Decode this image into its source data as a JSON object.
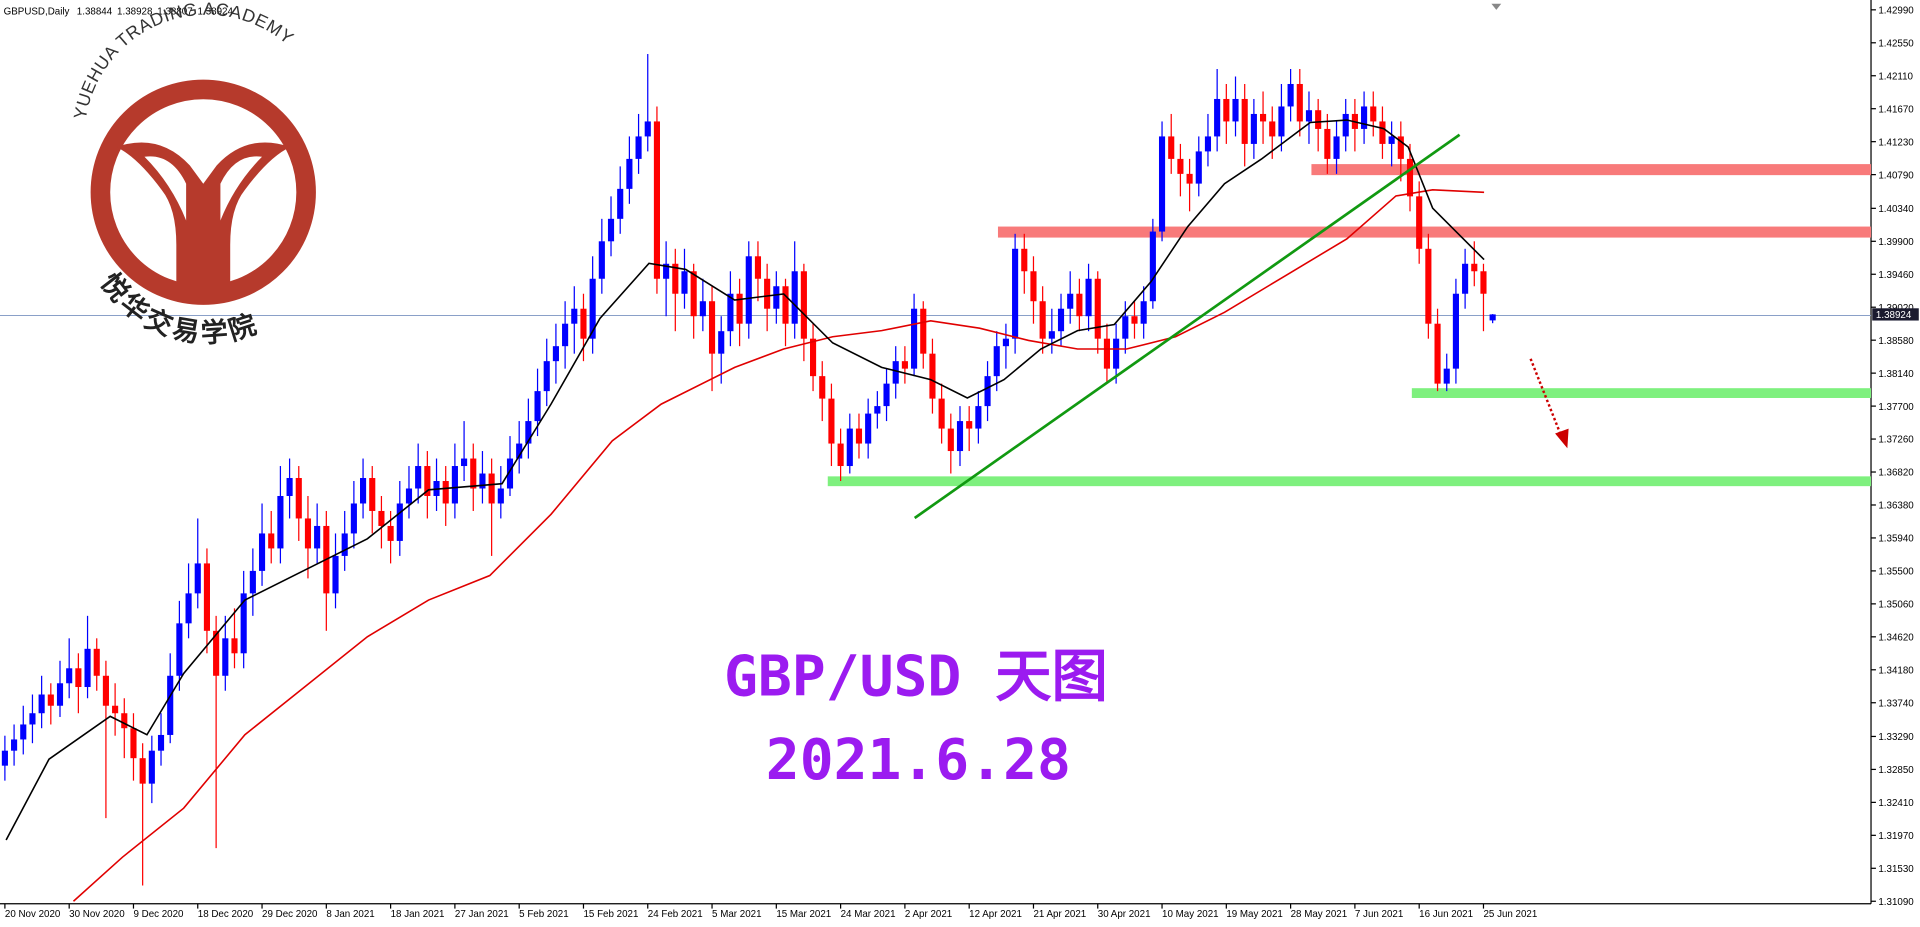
{
  "chart_data": {
    "type": "candlestick",
    "symbol": "GBPUSD,Daily",
    "title": "GBP/USD 天图",
    "subtitle": "2021.6.28",
    "watermark_en": "YUEHUA TRADING ACADEMY",
    "watermark_cn": "悦华交易学院",
    "up_color": "#0000ff",
    "down_color": "#ff0000",
    "ylim": [
      1.3109,
      1.4299
    ],
    "yticks": [
      {
        "value": 1.4299,
        "label": "1.42990"
      },
      {
        "value": 1.4255,
        "label": "1.42550"
      },
      {
        "value": 1.4211,
        "label": "1.42110"
      },
      {
        "value": 1.4167,
        "label": "1.41670"
      },
      {
        "value": 1.4123,
        "label": "1.41230"
      },
      {
        "value": 1.4079,
        "label": "1.40790"
      },
      {
        "value": 1.4034,
        "label": "1.40340"
      },
      {
        "value": 1.399,
        "label": "1.39900"
      },
      {
        "value": 1.3946,
        "label": "1.39460"
      },
      {
        "value": 1.3902,
        "label": "1.39020"
      },
      {
        "value": 1.3858,
        "label": "1.38580"
      },
      {
        "value": 1.3814,
        "label": "1.38140"
      },
      {
        "value": 1.377,
        "label": "1.37700"
      },
      {
        "value": 1.3726,
        "label": "1.37260"
      },
      {
        "value": 1.3682,
        "label": "1.36820"
      },
      {
        "value": 1.3638,
        "label": "1.36380"
      },
      {
        "value": 1.3594,
        "label": "1.35940"
      },
      {
        "value": 1.355,
        "label": "1.35500"
      },
      {
        "value": 1.3506,
        "label": "1.35060"
      },
      {
        "value": 1.3462,
        "label": "1.34620"
      },
      {
        "value": 1.3418,
        "label": "1.34180"
      },
      {
        "value": 1.3374,
        "label": "1.33740"
      },
      {
        "value": 1.3329,
        "label": "1.33290"
      },
      {
        "value": 1.3285,
        "label": "1.32850"
      },
      {
        "value": 1.3241,
        "label": "1.32410"
      },
      {
        "value": 1.3197,
        "label": "1.31970"
      },
      {
        "value": 1.3153,
        "label": "1.31530"
      },
      {
        "value": 1.3109,
        "label": "1.31090"
      }
    ],
    "categories": [
      "20 Nov 2020",
      null,
      null,
      null,
      null,
      null,
      null,
      "30 Nov 2020",
      null,
      null,
      null,
      null,
      null,
      null,
      "9 Dec 2020",
      null,
      null,
      null,
      null,
      null,
      null,
      "18 Dec 2020",
      null,
      null,
      null,
      null,
      null,
      null,
      "29 Dec 2020",
      null,
      null,
      null,
      null,
      null,
      null,
      "8 Jan 2021",
      null,
      null,
      null,
      null,
      null,
      null,
      "18 Jan 2021",
      null,
      null,
      null,
      null,
      null,
      null,
      "27 Jan 2021",
      null,
      null,
      null,
      null,
      null,
      null,
      "5 Feb 2021",
      null,
      null,
      null,
      null,
      null,
      null,
      "15 Feb 2021",
      null,
      null,
      null,
      null,
      null,
      null,
      "24 Feb 2021",
      null,
      null,
      null,
      null,
      null,
      null,
      "5 Mar 2021",
      null,
      null,
      null,
      null,
      null,
      null,
      "15 Mar 2021",
      null,
      null,
      null,
      null,
      null,
      null,
      "24 Mar 2021",
      null,
      null,
      null,
      null,
      null,
      null,
      "2 Apr 2021",
      null,
      null,
      null,
      null,
      null,
      null,
      "12 Apr 2021",
      null,
      null,
      null,
      null,
      null,
      null,
      "21 Apr 2021",
      null,
      null,
      null,
      null,
      null,
      null,
      "30 Apr 2021",
      null,
      null,
      null,
      null,
      null,
      null,
      "10 May 2021",
      null,
      null,
      null,
      null,
      null,
      null,
      "19 May 2021",
      null,
      null,
      null,
      null,
      null,
      null,
      "28 May 2021",
      null,
      null,
      null,
      null,
      null,
      null,
      "7 Jun 2021",
      null,
      null,
      null,
      null,
      null,
      null,
      "16 Jun 2021",
      null,
      null,
      null,
      null,
      null,
      null,
      "25 Jun 2021",
      null
    ],
    "candles": [
      [
        1.329,
        1.333,
        1.327,
        1.331
      ],
      [
        1.331,
        1.3345,
        1.329,
        1.3325
      ],
      [
        1.3325,
        1.337,
        1.3305,
        1.3345
      ],
      [
        1.3345,
        1.3385,
        1.332,
        1.336
      ],
      [
        1.336,
        1.341,
        1.334,
        1.3385
      ],
      [
        1.3385,
        1.34,
        1.3345,
        1.337
      ],
      [
        1.337,
        1.343,
        1.3355,
        1.34
      ],
      [
        1.34,
        1.346,
        1.338,
        1.342
      ],
      [
        1.342,
        1.344,
        1.336,
        1.3395
      ],
      [
        1.3395,
        1.349,
        1.338,
        1.3446
      ],
      [
        1.3446,
        1.346,
        1.339,
        1.341
      ],
      [
        1.341,
        1.343,
        1.322,
        1.337
      ],
      [
        1.337,
        1.34,
        1.333,
        1.336
      ],
      [
        1.336,
        1.338,
        1.33,
        1.334
      ],
      [
        1.334,
        1.336,
        1.327,
        1.33
      ],
      [
        1.33,
        1.332,
        1.313,
        1.3266
      ],
      [
        1.3266,
        1.333,
        1.324,
        1.331
      ],
      [
        1.331,
        1.336,
        1.329,
        1.3331
      ],
      [
        1.3331,
        1.344,
        1.332,
        1.341
      ],
      [
        1.341,
        1.351,
        1.339,
        1.348
      ],
      [
        1.348,
        1.356,
        1.346,
        1.352
      ],
      [
        1.352,
        1.362,
        1.35,
        1.356
      ],
      [
        1.356,
        1.358,
        1.344,
        1.347
      ],
      [
        1.347,
        1.349,
        1.318,
        1.341
      ],
      [
        1.341,
        1.349,
        1.339,
        1.346
      ],
      [
        1.346,
        1.35,
        1.342,
        1.344
      ],
      [
        1.344,
        1.355,
        1.342,
        1.352
      ],
      [
        1.352,
        1.358,
        1.349,
        1.355
      ],
      [
        1.355,
        1.364,
        1.353,
        1.36
      ],
      [
        1.36,
        1.363,
        1.356,
        1.358
      ],
      [
        1.358,
        1.369,
        1.356,
        1.365
      ],
      [
        1.365,
        1.37,
        1.362,
        1.3674
      ],
      [
        1.3674,
        1.369,
        1.359,
        1.362
      ],
      [
        1.362,
        1.365,
        1.354,
        1.358
      ],
      [
        1.358,
        1.364,
        1.356,
        1.361
      ],
      [
        1.361,
        1.363,
        1.347,
        1.352
      ],
      [
        1.352,
        1.36,
        1.35,
        1.357
      ],
      [
        1.357,
        1.363,
        1.355,
        1.36
      ],
      [
        1.36,
        1.367,
        1.358,
        1.364
      ],
      [
        1.364,
        1.37,
        1.362,
        1.3674
      ],
      [
        1.3674,
        1.369,
        1.36,
        1.363
      ],
      [
        1.363,
        1.365,
        1.358,
        1.361
      ],
      [
        1.361,
        1.363,
        1.356,
        1.359
      ],
      [
        1.359,
        1.367,
        1.357,
        1.364
      ],
      [
        1.364,
        1.369,
        1.362,
        1.366
      ],
      [
        1.366,
        1.372,
        1.364,
        1.369
      ],
      [
        1.369,
        1.371,
        1.362,
        1.365
      ],
      [
        1.365,
        1.37,
        1.363,
        1.367
      ],
      [
        1.367,
        1.369,
        1.361,
        1.364
      ],
      [
        1.364,
        1.372,
        1.362,
        1.369
      ],
      [
        1.369,
        1.375,
        1.367,
        1.37
      ],
      [
        1.37,
        1.372,
        1.363,
        1.366
      ],
      [
        1.366,
        1.371,
        1.364,
        1.368
      ],
      [
        1.368,
        1.37,
        1.357,
        1.364
      ],
      [
        1.364,
        1.369,
        1.362,
        1.366
      ],
      [
        1.366,
        1.373,
        1.365,
        1.37
      ],
      [
        1.37,
        1.375,
        1.368,
        1.372
      ],
      [
        1.372,
        1.378,
        1.37,
        1.375
      ],
      [
        1.375,
        1.382,
        1.373,
        1.379
      ],
      [
        1.379,
        1.386,
        1.377,
        1.383
      ],
      [
        1.383,
        1.388,
        1.38,
        1.385
      ],
      [
        1.385,
        1.391,
        1.382,
        1.388
      ],
      [
        1.388,
        1.393,
        1.384,
        1.39
      ],
      [
        1.39,
        1.392,
        1.383,
        1.386
      ],
      [
        1.386,
        1.397,
        1.384,
        1.394
      ],
      [
        1.394,
        1.402,
        1.392,
        1.399
      ],
      [
        1.399,
        1.405,
        1.397,
        1.402
      ],
      [
        1.402,
        1.409,
        1.4,
        1.406
      ],
      [
        1.406,
        1.413,
        1.404,
        1.41
      ],
      [
        1.41,
        1.416,
        1.408,
        1.413
      ],
      [
        1.413,
        1.424,
        1.411,
        1.415
      ],
      [
        1.415,
        1.417,
        1.392,
        1.394
      ],
      [
        1.394,
        1.399,
        1.389,
        1.396
      ],
      [
        1.396,
        1.398,
        1.387,
        1.392
      ],
      [
        1.392,
        1.398,
        1.39,
        1.395
      ],
      [
        1.395,
        1.396,
        1.386,
        1.389
      ],
      [
        1.389,
        1.394,
        1.387,
        1.391
      ],
      [
        1.391,
        1.393,
        1.379,
        1.384
      ],
      [
        1.384,
        1.389,
        1.38,
        1.387
      ],
      [
        1.387,
        1.395,
        1.385,
        1.392
      ],
      [
        1.392,
        1.394,
        1.385,
        1.388
      ],
      [
        1.388,
        1.399,
        1.386,
        1.397
      ],
      [
        1.397,
        1.399,
        1.391,
        1.394
      ],
      [
        1.394,
        1.396,
        1.387,
        1.39
      ],
      [
        1.39,
        1.395,
        1.388,
        1.393
      ],
      [
        1.393,
        1.394,
        1.385,
        1.388
      ],
      [
        1.388,
        1.399,
        1.386,
        1.395
      ],
      [
        1.395,
        1.396,
        1.383,
        1.386
      ],
      [
        1.386,
        1.388,
        1.379,
        1.381
      ],
      [
        1.381,
        1.383,
        1.375,
        1.378
      ],
      [
        1.378,
        1.38,
        1.369,
        1.372
      ],
      [
        1.372,
        1.374,
        1.367,
        1.369
      ],
      [
        1.369,
        1.376,
        1.368,
        1.374
      ],
      [
        1.374,
        1.376,
        1.37,
        1.372
      ],
      [
        1.372,
        1.378,
        1.37,
        1.376
      ],
      [
        1.376,
        1.379,
        1.374,
        1.377
      ],
      [
        1.377,
        1.382,
        1.375,
        1.38
      ],
      [
        1.38,
        1.385,
        1.378,
        1.383
      ],
      [
        1.383,
        1.385,
        1.38,
        1.382
      ],
      [
        1.382,
        1.392,
        1.381,
        1.39
      ],
      [
        1.39,
        1.391,
        1.382,
        1.384
      ],
      [
        1.384,
        1.386,
        1.376,
        1.378
      ],
      [
        1.378,
        1.38,
        1.372,
        1.374
      ],
      [
        1.374,
        1.376,
        1.368,
        1.371
      ],
      [
        1.371,
        1.377,
        1.369,
        1.375
      ],
      [
        1.375,
        1.377,
        1.371,
        1.374
      ],
      [
        1.374,
        1.379,
        1.372,
        1.377
      ],
      [
        1.377,
        1.383,
        1.375,
        1.381
      ],
      [
        1.381,
        1.387,
        1.379,
        1.385
      ],
      [
        1.385,
        1.388,
        1.382,
        1.386
      ],
      [
        1.386,
        1.4,
        1.384,
        1.398
      ],
      [
        1.398,
        1.4,
        1.392,
        1.395
      ],
      [
        1.395,
        1.397,
        1.388,
        1.391
      ],
      [
        1.391,
        1.393,
        1.384,
        1.386
      ],
      [
        1.386,
        1.39,
        1.384,
        1.387
      ],
      [
        1.387,
        1.392,
        1.385,
        1.39
      ],
      [
        1.39,
        1.395,
        1.388,
        1.392
      ],
      [
        1.392,
        1.394,
        1.387,
        1.389
      ],
      [
        1.389,
        1.396,
        1.387,
        1.394
      ],
      [
        1.394,
        1.395,
        1.384,
        1.386
      ],
      [
        1.386,
        1.388,
        1.38,
        1.382
      ],
      [
        1.382,
        1.388,
        1.38,
        1.386
      ],
      [
        1.386,
        1.391,
        1.384,
        1.389
      ],
      [
        1.389,
        1.391,
        1.386,
        1.388
      ],
      [
        1.388,
        1.393,
        1.386,
        1.391
      ],
      [
        1.391,
        1.402,
        1.39,
        1.4003
      ],
      [
        1.4003,
        1.415,
        1.399,
        1.413
      ],
      [
        1.413,
        1.416,
        1.408,
        1.41
      ],
      [
        1.41,
        1.412,
        1.405,
        1.408
      ],
      [
        1.408,
        1.41,
        1.403,
        1.4067
      ],
      [
        1.4067,
        1.413,
        1.405,
        1.411
      ],
      [
        1.411,
        1.416,
        1.409,
        1.413
      ],
      [
        1.413,
        1.422,
        1.411,
        1.418
      ],
      [
        1.418,
        1.42,
        1.412,
        1.415
      ],
      [
        1.415,
        1.421,
        1.413,
        1.418
      ],
      [
        1.418,
        1.42,
        1.409,
        1.412
      ],
      [
        1.412,
        1.418,
        1.41,
        1.416
      ],
      [
        1.416,
        1.419,
        1.412,
        1.415
      ],
      [
        1.415,
        1.417,
        1.41,
        1.413
      ],
      [
        1.413,
        1.42,
        1.411,
        1.417
      ],
      [
        1.417,
        1.422,
        1.415,
        1.42
      ],
      [
        1.42,
        1.422,
        1.413,
        1.415
      ],
      [
        1.415,
        1.419,
        1.412,
        1.4165
      ],
      [
        1.4165,
        1.418,
        1.411,
        1.414
      ],
      [
        1.414,
        1.416,
        1.408,
        1.41
      ],
      [
        1.41,
        1.415,
        1.408,
        1.413
      ],
      [
        1.413,
        1.418,
        1.411,
        1.416
      ],
      [
        1.416,
        1.418,
        1.411,
        1.414
      ],
      [
        1.414,
        1.419,
        1.412,
        1.417
      ],
      [
        1.417,
        1.419,
        1.413,
        1.415
      ],
      [
        1.415,
        1.417,
        1.41,
        1.412
      ],
      [
        1.412,
        1.415,
        1.409,
        1.413
      ],
      [
        1.413,
        1.415,
        1.407,
        1.41
      ],
      [
        1.41,
        1.412,
        1.403,
        1.405
      ],
      [
        1.405,
        1.407,
        1.396,
        1.398
      ],
      [
        1.398,
        1.4,
        1.386,
        1.388
      ],
      [
        1.388,
        1.39,
        1.379,
        1.38
      ],
      [
        1.38,
        1.384,
        1.379,
        1.382
      ],
      [
        1.382,
        1.394,
        1.38,
        1.392
      ],
      [
        1.392,
        1.398,
        1.39,
        1.396
      ],
      [
        1.396,
        1.399,
        1.393,
        1.395
      ],
      [
        1.395,
        1.396,
        1.387,
        1.392
      ],
      [
        1.38844,
        1.38928,
        1.38807,
        1.38924
      ]
    ]
  }
}
